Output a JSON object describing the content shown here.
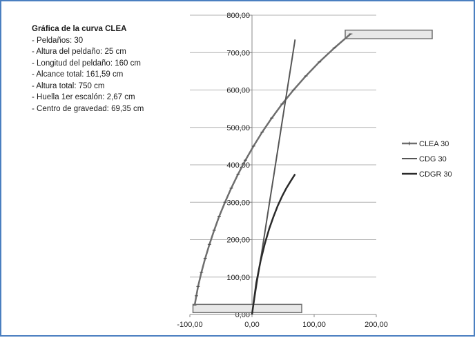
{
  "info": {
    "title": "Gráfica de la curva CLEA",
    "lines": [
      "Peldaños:  30",
      "Altura del peldaño: 25 cm",
      "Longitud del peldaño: 160 cm",
      "Alcance total: 161,59 cm",
      "Altura total: 750 cm",
      "Huella 1er escalón:  2,67 cm",
      "Centro de gravedad:  69,35 cm"
    ]
  },
  "colors": {
    "border": "#4a7fc0",
    "grid": "#b0b0b0",
    "clea": "#6e6e6e",
    "cdg": "#555555",
    "cdgr": "#2a2a2a",
    "rect_fill": "#e8e8e8",
    "rect_stroke": "#707070"
  },
  "chart_data": {
    "type": "scatter",
    "title": "",
    "xlabel": "",
    "ylabel": "",
    "xlim": [
      -100,
      200
    ],
    "ylim": [
      0,
      800
    ],
    "x_ticks": [
      "-100,00",
      "0,00",
      "100,00",
      "200,00"
    ],
    "y_ticks": [
      "0,00",
      "100,00",
      "200,00",
      "300,00",
      "400,00",
      "500,00",
      "600,00",
      "700,00",
      "800,00"
    ],
    "grid": "horizontal",
    "legend_position": "right",
    "series": [
      {
        "name": "CLEA 30",
        "x": [
          -92.2,
          -89.5,
          -86.8,
          -81.4,
          -75.3,
          -68.5,
          -60.9,
          -52.8,
          -43.4,
          -33.4,
          -22.4,
          -10.6,
          2.4,
          16.4,
          31.8,
          48.5,
          66.8,
          86.7,
          108.5,
          132.5,
          158.8
        ],
        "y": [
          25,
          50,
          75,
          112.5,
          150,
          187.5,
          225,
          262.5,
          300,
          337.5,
          375,
          412.5,
          450,
          487.5,
          525,
          562.5,
          600,
          637.5,
          675,
          712.5,
          750
        ]
      },
      {
        "name": "CDG 30",
        "x": [
          0,
          6.9,
          13.9,
          20.8,
          27.7,
          34.7,
          41.6,
          48.5,
          55.5,
          62.4,
          69.35
        ],
        "y": [
          0,
          73.5,
          147,
          220.5,
          294,
          367.5,
          441,
          514.5,
          588,
          661.5,
          735
        ]
      },
      {
        "name": "CDGR 30",
        "x": [
          0,
          6.9,
          13.9,
          20.8,
          27.7,
          34.7,
          41.6,
          48.5,
          55.5,
          62.4,
          69.35
        ],
        "y": [
          0,
          84,
          144,
          190,
          229,
          262,
          291,
          316,
          338,
          357,
          375
        ]
      }
    ],
    "annotations": [
      {
        "kind": "rect",
        "x": [
          -95,
          80
        ],
        "y": [
          5,
          27
        ]
      },
      {
        "kind": "rect",
        "x": [
          150,
          290
        ],
        "y": [
          737,
          760
        ]
      }
    ]
  }
}
